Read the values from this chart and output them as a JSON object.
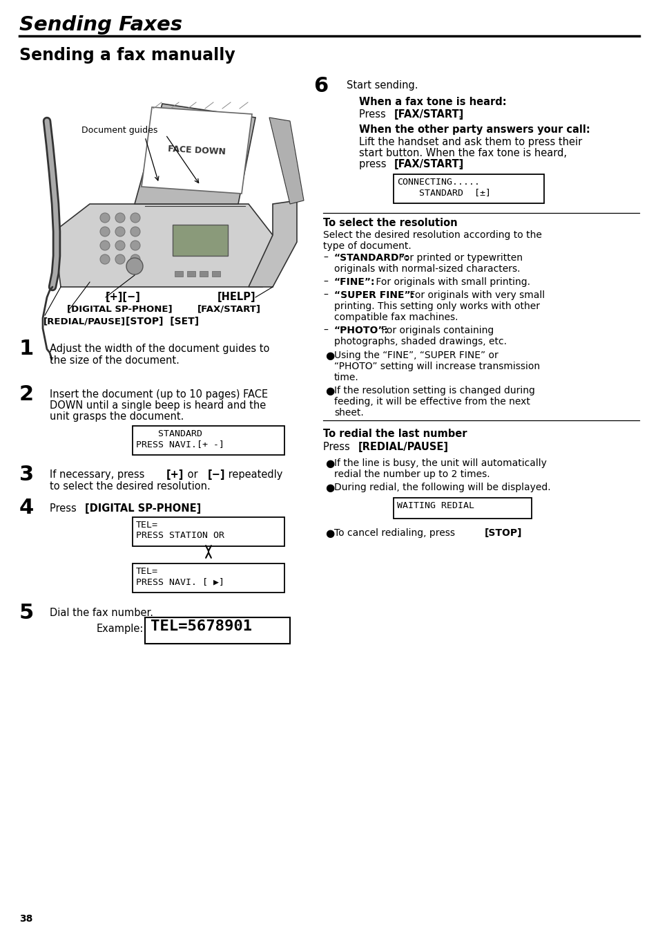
{
  "title": "Sending Faxes",
  "subtitle": "Sending a fax manually",
  "bg_color": "#ffffff",
  "page_number": "38",
  "lbl_doc_guides": "Document guides",
  "lbl_pm": "[+][−]",
  "lbl_dsp": "[DIGITAL SP-PHONE]",
  "lbl_redial": "[REDIAL/PAUSE]",
  "lbl_help": "[HELP]",
  "lbl_fax": "[FAX/START]",
  "lbl_stop_set": "[STOP]  [SET]",
  "step1": "Adjust the width of the document guides to\nthe size of the document.",
  "step2_t1": "Insert the document (up to 10 pages) FACE",
  "step2_t2": "DOWN until a single beep is heard and the",
  "step2_t3": "unit grasps the document.",
  "step2_display": "    STANDARD\nPRESS NAVI.[+ -]",
  "step3_pre": "If necessary, press ",
  "step3_b1": "[+]",
  "step3_mid": " or ",
  "step3_b2": "[−]",
  "step3_post": " repeatedly",
  "step3_l2": "to select the desired resolution.",
  "step4_pre": "Press ",
  "step4_bold": "[DIGITAL SP-PHONE]",
  "step4_suf": ".",
  "step4_d1": "TEL=\nPRESS STATION OR",
  "step4_d2": "TEL=\nPRESS NAVI. [ ▶]",
  "step5": "Dial the fax number.",
  "step5_ex": "Example:",
  "step5_display": "TEL=5678901",
  "step6_intro": "Start sending.",
  "step6_h1": "When a fax tone is heard:",
  "step6_pre1": "Press ",
  "step6_b1": "[FAX/START]",
  "step6_suf1": ".",
  "step6_h2": "When the other party answers your call:",
  "step6_t2a": "Lift the handset and ask them to press their",
  "step6_t2b": "start button. When the fax tone is heard,",
  "step6_t2c_pre": "press ",
  "step6_t2c_b": "[FAX/START]",
  "step6_t2c_suf": ".",
  "step6_display": "CONNECTING.....\n    STANDARD  [±]",
  "res_title": "To select the resolution",
  "res_intro1": "Select the desired resolution according to the",
  "res_intro2": "type of document.",
  "res_d1_b": "“STANDARD”:",
  "res_d1_r": " For printed or typewritten",
  "res_d1_r2": "originals with normal-sized characters.",
  "res_d2_b": "“FINE”:",
  "res_d2_r": " For originals with small printing.",
  "res_d3_b": "“SUPER FINE”:",
  "res_d3_r": " For originals with very small",
  "res_d3_r2": "printing. This setting only works with other",
  "res_d3_r3": "compatible fax machines.",
  "res_d4_b": "“PHOTO”:",
  "res_d4_r": " For originals containing",
  "res_d4_r2": "photographs, shaded drawings, etc.",
  "res_b1a": "Using the “FINE”, “SUPER FINE” or",
  "res_b1b": "“PHOTO” setting will increase transmission",
  "res_b1c": "time.",
  "res_b2a": "If the resolution setting is changed during",
  "res_b2b": "feeding, it will be effective from the next",
  "res_b2c": "sheet.",
  "redial_title": "To redial the last number",
  "redial_pre": "Press ",
  "redial_bold": "[REDIAL/PAUSE]",
  "redial_suf": ".",
  "redial_b1a": "If the line is busy, the unit will automatically",
  "redial_b1b": "redial the number up to 2 times.",
  "redial_b2": "During redial, the following will be displayed.",
  "redial_display": "WAITING REDIAL",
  "cancel_pre": "To cancel redialing, press ",
  "cancel_bold": "[STOP]",
  "cancel_suf": "."
}
